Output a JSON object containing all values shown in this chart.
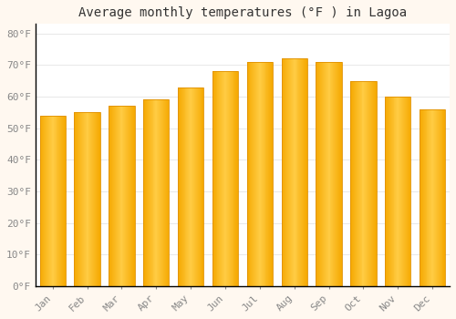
{
  "title": "Average monthly temperatures (°F ) in Lagoa",
  "months": [
    "Jan",
    "Feb",
    "Mar",
    "Apr",
    "May",
    "Jun",
    "Jul",
    "Aug",
    "Sep",
    "Oct",
    "Nov",
    "Dec"
  ],
  "values": [
    54,
    55,
    57,
    59,
    63,
    68,
    71,
    72,
    71,
    65,
    60,
    56
  ],
  "bar_color_center": "#FFCC44",
  "bar_color_edge": "#F5A800",
  "background_color": "#FFFFFF",
  "outer_background": "#FFF8F0",
  "grid_color": "#E8E8E8",
  "title_fontsize": 10,
  "tick_fontsize": 8,
  "ylabel_ticks": [
    0,
    10,
    20,
    30,
    40,
    50,
    60,
    70,
    80
  ],
  "ylim": [
    0,
    83
  ],
  "font_family": "monospace"
}
